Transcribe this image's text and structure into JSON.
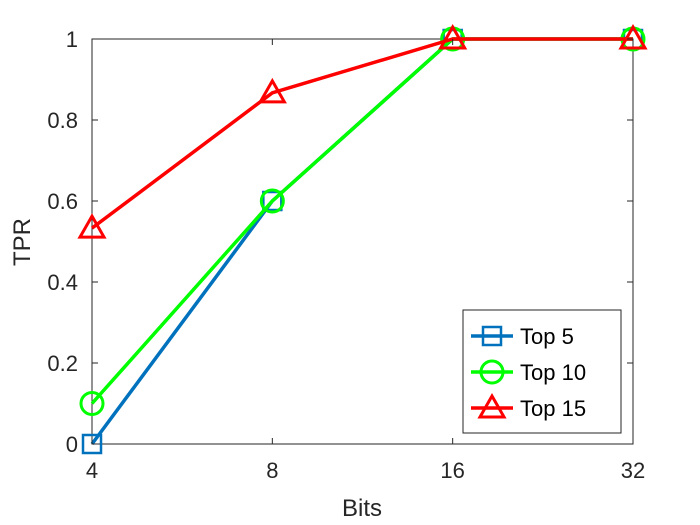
{
  "chart_data": {
    "type": "line",
    "title": "",
    "xlabel": "Bits",
    "ylabel": "TPR",
    "categories": [
      "4",
      "8",
      "16",
      "32"
    ],
    "ylim": [
      0,
      1
    ],
    "yticks": [
      "0",
      "0.2",
      "0.4",
      "0.6",
      "0.8",
      "1"
    ],
    "grid": false,
    "legend_position": "bottom-right",
    "series": [
      {
        "name": "Top 5",
        "values": [
          0.0,
          0.6,
          1.0,
          1.0
        ],
        "color": "#0072BD",
        "marker": "square"
      },
      {
        "name": "Top 10",
        "values": [
          0.1,
          0.6,
          1.0,
          1.0
        ],
        "color": "#00FF00",
        "marker": "circle"
      },
      {
        "name": "Top 15",
        "values": [
          0.533,
          0.867,
          1.0,
          1.0
        ],
        "color": "#FF0000",
        "marker": "triangle"
      }
    ]
  }
}
